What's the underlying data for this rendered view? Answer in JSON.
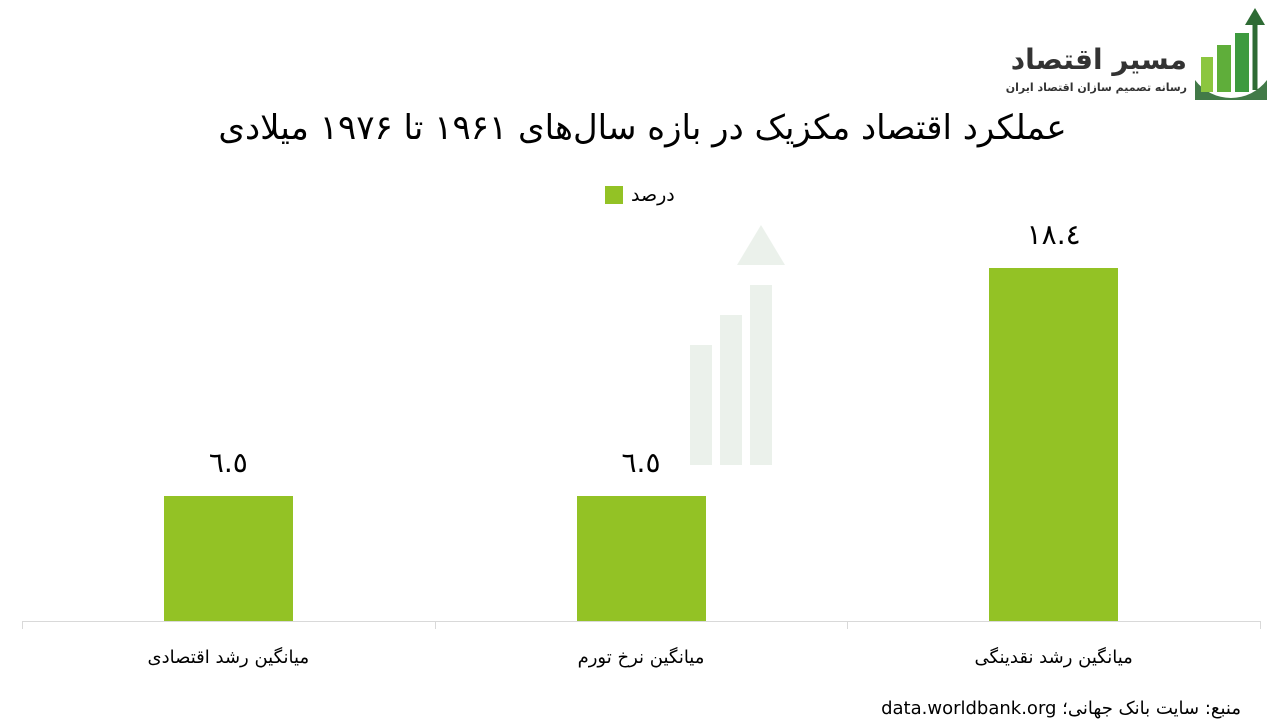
{
  "logo": {
    "name": "مسیر اقتصاد",
    "tagline": "رسانه تصمیم سازان اقتصاد ایران"
  },
  "watermark": {
    "name": "مسیر اقتصاد",
    "tagline": "رسانه تصمیم سازان اقتصاد ایران"
  },
  "colors": {
    "bar": "#93c225",
    "logo_dark": "#2e6b34",
    "logo_light": "#8cc63f"
  },
  "chart_data": {
    "type": "bar",
    "title": "عملکرد اقتصاد مکزیک در بازه سال‌های ۱۹۶۱ تا ۱۹۷۶ میلادی",
    "legend": [
      "درصد"
    ],
    "legend_position": "top-center",
    "categories": [
      "میانگین رشد اقتصادی",
      "میانگین نرخ تورم",
      "میانگین رشد نقدینگی"
    ],
    "values": [
      6.5,
      6.5,
      18.4
    ],
    "value_labels": [
      "٦.٥",
      "٦.٥",
      "١٨.٤"
    ],
    "ylim": [
      0,
      18.4
    ],
    "grid": false
  },
  "source": "منبع: سایت بانک جهانی؛ data.worldbank.org"
}
